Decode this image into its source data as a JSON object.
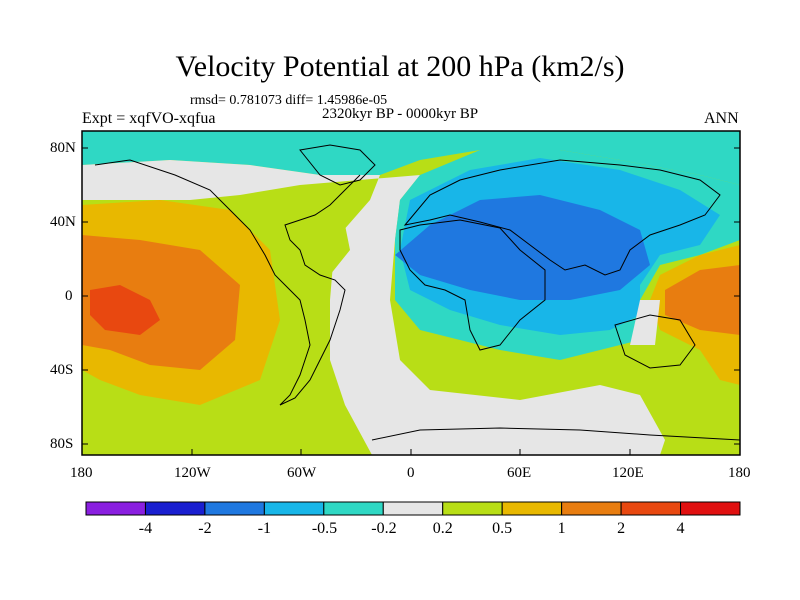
{
  "title": "Velocity Potential at 200 hPa (km2/s)",
  "stats": "rmsd= 0.781073 diff= 1.45986e-05",
  "expt": "Expt = xqfVO-xqfua",
  "period": "2320kyr BP - 0000kyr BP",
  "season": "ANN",
  "axes": {
    "lat_ticks": [
      "80N",
      "40N",
      "0",
      "40S",
      "80S"
    ],
    "lon_ticks": [
      "180",
      "120W",
      "60W",
      "0",
      "60E",
      "120E",
      "180"
    ]
  },
  "colorbar": {
    "labels": [
      "-4",
      "-2",
      "-1",
      "-0.5",
      "-0.2",
      "0.2",
      "0.5",
      "1",
      "2",
      "4"
    ],
    "colors": [
      "#8a1fe0",
      "#1a1fd0",
      "#1f78e0",
      "#18b6e8",
      "#2fd8c4",
      "#e6e6e6",
      "#b8de16",
      "#e8b800",
      "#e87d10",
      "#e84810",
      "#e01010"
    ]
  },
  "map_colors": {
    "ocean_default": "#b8de16",
    "neutral": "#e6e6e6",
    "light_negative": "#2fd8c4",
    "medium_negative": "#18b6e8",
    "strong_negative": "#1f78e0",
    "light_positive": "#e8b800",
    "medium_positive": "#e87d10",
    "strong_positive": "#e84810"
  }
}
